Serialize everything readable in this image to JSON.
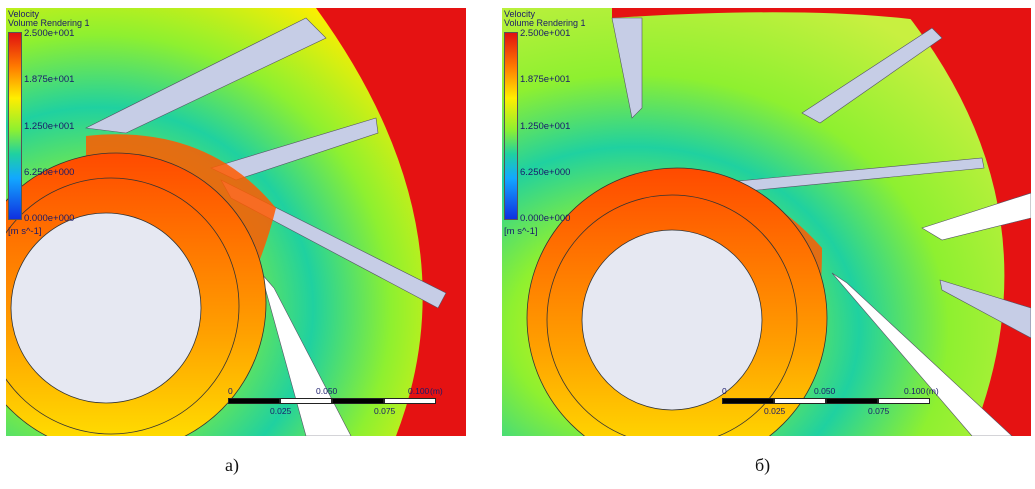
{
  "panels": [
    {
      "caption": "а)",
      "legend": {
        "title1": "Velocity",
        "title2": "Volume Rendering 1",
        "ticks": [
          "2.500e+001",
          "1.875e+001",
          "1.250e+001",
          "6.250e+000",
          "0.000e+000"
        ],
        "unit": "[m s^-1]"
      },
      "scale": {
        "top_labels": [
          "0",
          "0.050",
          "0.100"
        ],
        "top_unit": "(m)",
        "bottom_labels": [
          "0.025",
          "0.075"
        ]
      }
    },
    {
      "caption": "б)",
      "legend": {
        "title1": "Velocity",
        "title2": "Volume Rendering 1",
        "ticks": [
          "2.500e+001",
          "1.875e+001",
          "1.250e+001",
          "6.250e+000",
          "0.000e+000"
        ],
        "unit": "[m s^-1]"
      },
      "scale": {
        "top_labels": [
          "0",
          "0.050",
          "0.100"
        ],
        "top_unit": "(m)",
        "bottom_labels": [
          "0.025",
          "0.075"
        ]
      }
    }
  ],
  "colors": {
    "max": "#e01010",
    "high": "#ff7a00",
    "mid_high": "#ffee00",
    "mid": "#8ef030",
    "low_mid": "#1fd1a0",
    "low": "#12a8ff",
    "min": "#1030e0",
    "blade": "#c6cde6"
  }
}
